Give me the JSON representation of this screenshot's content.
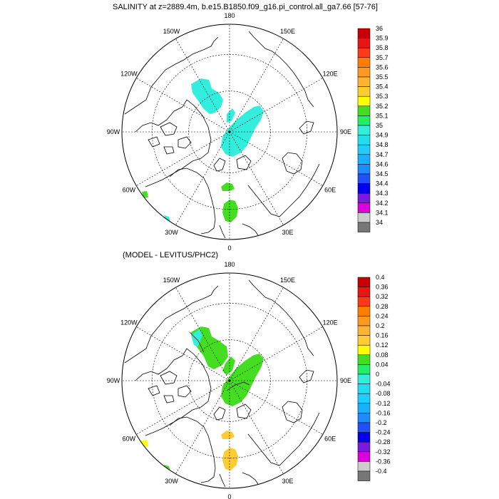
{
  "panels": [
    {
      "title": "SALINITY at z=2889.4m, b.e15.B1850.f09_g16.pi_control.all_ga7.66 [57-76]",
      "lon_labels": [
        "180",
        "150E",
        "120E",
        "90E",
        "60E",
        "30E",
        "0",
        "30W",
        "60W",
        "90W",
        "120W",
        "150W"
      ],
      "colorbar": {
        "labels": [
          "36",
          "35.9",
          "35.8",
          "35.7",
          "35.6",
          "35.5",
          "35.4",
          "35.3",
          "35.2",
          "35.1",
          "35",
          "34.9",
          "34.8",
          "34.7",
          "34.6",
          "34.5",
          "34.4",
          "34.3",
          "34.2",
          "34.1",
          "34"
        ],
        "colors": [
          "#c80000",
          "#e81515",
          "#ff3a1a",
          "#ff7e00",
          "#ff9a20",
          "#ffb330",
          "#ffcc33",
          "#ffff00",
          "#44dd22",
          "#22ee66",
          "#33eedd",
          "#22ddee",
          "#22ccff",
          "#1ab0ff",
          "#1e8cff",
          "#2050ff",
          "#0000ee",
          "#7a1adf",
          "#dd00dd",
          "#cccccc",
          "#777777"
        ]
      }
    },
    {
      "title": "(MODEL - LEVITUS/PHC2)",
      "lon_labels": [
        "180",
        "150E",
        "120E",
        "90E",
        "60E",
        "30E",
        "0",
        "30W",
        "60W",
        "90W",
        "120W",
        "150W"
      ],
      "colorbar": {
        "labels": [
          "0.4",
          "0.36",
          "0.32",
          "0.28",
          "0.24",
          "0.2",
          "0.16",
          "0.12",
          "0.08",
          "0.04",
          "0",
          "-0.04",
          "-0.08",
          "-0.12",
          "-0.16",
          "-0.2",
          "-0.24",
          "-0.28",
          "-0.32",
          "-0.36",
          "-0.4"
        ],
        "colors": [
          "#c80000",
          "#e81515",
          "#ff3a1a",
          "#ff7e00",
          "#ff9a20",
          "#ffb330",
          "#ffcc33",
          "#ffff00",
          "#44dd22",
          "#22ee66",
          "#33eedd",
          "#22ddee",
          "#22ccff",
          "#1ab0ff",
          "#1e8cff",
          "#2050ff",
          "#0000ee",
          "#7a1adf",
          "#dd00dd",
          "#cccccc",
          "#777777"
        ]
      }
    }
  ],
  "fields": {
    "salinity_colors": {
      "main": "#33eedd",
      "green": "#44dd22"
    },
    "difference_colors": {
      "green": "#44dd22",
      "cyan": "#33eedd",
      "yellow": "#ffcc33"
    }
  }
}
